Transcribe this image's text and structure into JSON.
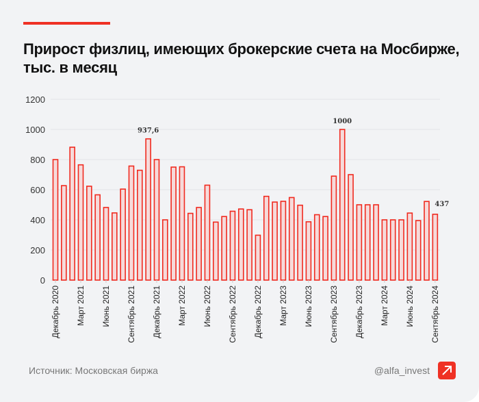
{
  "title": "Прирост физлиц, имеющих брокерские счета на Мосбирже, тыс. в месяц",
  "colors": {
    "accent": "#ef3124",
    "bar_stroke": "#f02a1f",
    "bar_fill": "#f6dada",
    "grid": "#e2e3e6",
    "background": "#f2f3f5"
  },
  "chart_data": {
    "type": "bar",
    "title": "Прирост физлиц, имеющих брокерские счета на Мосбирже, тыс. в месяц",
    "ylim": [
      0,
      1200
    ],
    "yticks": [
      "0",
      "200",
      "400",
      "600",
      "800",
      "1000",
      "1200"
    ],
    "ytick_values": [
      0,
      200,
      400,
      600,
      800,
      1000,
      1200
    ],
    "grid": true,
    "xtick_labels": [
      "Декабрь 2020",
      "Март 2021",
      "Июнь 2021",
      "Сентябрь 2021",
      "Декабрь 2021",
      "Март 2022",
      "Июнь 2022",
      "Сентябрь 2022",
      "Декабрь 2022",
      "Март 2023",
      "Июнь 2023",
      "Сентябрь 2023",
      "Декабрь 2023",
      "Март 2024",
      "Июнь 2024",
      "Сентябрь 2024"
    ],
    "values": [
      800,
      627,
      882,
      765,
      623,
      566,
      482,
      446,
      604,
      757,
      729,
      937.6,
      800,
      400,
      750,
      752,
      443,
      482,
      630,
      385,
      422,
      457,
      472,
      467,
      298,
      556,
      518,
      523,
      548,
      497,
      387,
      434,
      422,
      690,
      1000,
      700,
      500,
      500,
      500,
      400,
      400,
      400,
      445,
      395,
      522,
      437
    ],
    "data_labels": [
      {
        "index": 11,
        "text": "937,6"
      },
      {
        "index": 34,
        "text": "1000"
      },
      {
        "index": 45,
        "text": "437"
      }
    ]
  },
  "footer": {
    "source": "Источник: Московская биржа",
    "handle": "@alfa_invest",
    "logo_icon": "alfa-arrow-logo"
  }
}
